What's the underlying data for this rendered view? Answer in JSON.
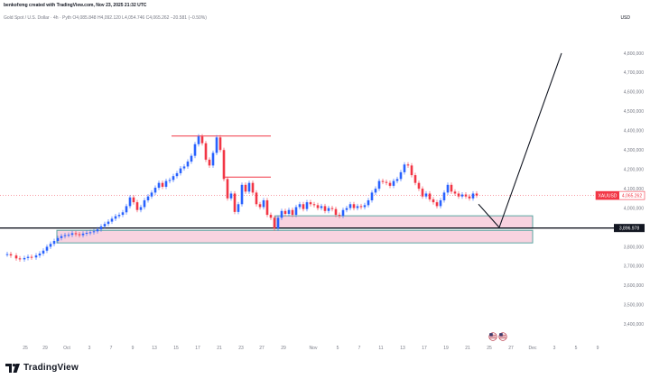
{
  "header": {
    "title": "benkofxmg created with TradingView.com, Nov 23, 2025 21:32 UTC",
    "ohlc": "Gold Spot / U.S. Dollar · 4h · Pyth  O4,085.848  H4,092.120  L4,054.746  C4,065.262  −20.581 (−0.50%)"
  },
  "currency": "USD",
  "price_tag": {
    "symbol": "XAUUSD",
    "value": "4,065.262",
    "color": "#f23645"
  },
  "level_tag": {
    "value": "3,896.978",
    "color": "#131722"
  },
  "chart_data": {
    "type": "candlestick",
    "instrument": "XAUUSD",
    "timeframe": "4h",
    "y_ticks": [
      "4,800,000",
      "4,700,000",
      "4,600,000",
      "4,500,000",
      "4,400,000",
      "4,300,000",
      "4,200,000",
      "4,100,000",
      "4,000,000",
      "3,800,000",
      "3,700,000",
      "3,600,000",
      "3,500,000",
      "3,400,000"
    ],
    "y_tick_values": [
      4800,
      4700,
      4600,
      4500,
      4400,
      4300,
      4200,
      4100,
      4000,
      3800,
      3700,
      3600,
      3500,
      3400
    ],
    "ylim": [
      3350,
      4935
    ],
    "x_ticks": [
      "25",
      "29",
      "Oct",
      "3",
      "7",
      "9",
      "13",
      "15",
      "17",
      "21",
      "23",
      "27",
      "29",
      "Nov",
      "5",
      "7",
      "11",
      "13",
      "17",
      "19",
      "21",
      "25",
      "27",
      "Dec",
      "3",
      "5",
      "9"
    ],
    "xlim": [
      0,
      720
    ],
    "close_path": [
      [
        3,
        3760
      ],
      [
        8,
        3762
      ],
      [
        12,
        3755
      ],
      [
        18,
        3740
      ],
      [
        22,
        3735
      ],
      [
        27,
        3742
      ],
      [
        31,
        3748
      ],
      [
        35,
        3745
      ],
      [
        40,
        3755
      ],
      [
        44,
        3765
      ],
      [
        48,
        3780
      ],
      [
        52,
        3800
      ],
      [
        56,
        3815
      ],
      [
        60,
        3830
      ],
      [
        64,
        3845
      ],
      [
        68,
        3855
      ],
      [
        72,
        3860
      ],
      [
        76,
        3862
      ],
      [
        80,
        3870
      ],
      [
        84,
        3865
      ],
      [
        88,
        3860
      ],
      [
        92,
        3868
      ],
      [
        96,
        3872
      ],
      [
        100,
        3875
      ],
      [
        104,
        3880
      ],
      [
        108,
        3890
      ],
      [
        112,
        3905
      ],
      [
        116,
        3918
      ],
      [
        120,
        3930
      ],
      [
        124,
        3945
      ],
      [
        128,
        3958
      ],
      [
        132,
        3965
      ],
      [
        136,
        3978
      ],
      [
        140,
        4010
      ],
      [
        144,
        4055
      ],
      [
        148,
        4030
      ],
      [
        152,
        3990
      ],
      [
        156,
        4005
      ],
      [
        160,
        4040
      ],
      [
        164,
        4060
      ],
      [
        168,
        4080
      ],
      [
        172,
        4105
      ],
      [
        176,
        4130
      ],
      [
        180,
        4110
      ],
      [
        184,
        4140
      ],
      [
        188,
        4145
      ],
      [
        192,
        4165
      ],
      [
        196,
        4180
      ],
      [
        200,
        4205
      ],
      [
        204,
        4215
      ],
      [
        208,
        4240
      ],
      [
        212,
        4270
      ],
      [
        216,
        4330
      ],
      [
        220,
        4370
      ],
      [
        224,
        4335
      ],
      [
        228,
        4250
      ],
      [
        232,
        4220
      ],
      [
        236,
        4285
      ],
      [
        240,
        4365
      ],
      [
        244,
        4300
      ],
      [
        248,
        4150
      ],
      [
        252,
        4050
      ],
      [
        256,
        4075
      ],
      [
        260,
        3980
      ],
      [
        264,
        4020
      ],
      [
        268,
        4120
      ],
      [
        272,
        4085
      ],
      [
        276,
        4130
      ],
      [
        280,
        4080
      ],
      [
        284,
        4020
      ],
      [
        288,
        4005
      ],
      [
        292,
        4040
      ],
      [
        296,
        3965
      ],
      [
        300,
        3950
      ],
      [
        304,
        3895
      ],
      [
        308,
        3950
      ],
      [
        312,
        3985
      ],
      [
        316,
        3970
      ],
      [
        320,
        3990
      ],
      [
        324,
        3965
      ],
      [
        328,
        4005
      ],
      [
        332,
        4020
      ],
      [
        336,
        3995
      ],
      [
        340,
        4030
      ],
      [
        344,
        4020
      ],
      [
        348,
        4015
      ],
      [
        352,
        4000
      ],
      [
        356,
        4010
      ],
      [
        360,
        3985
      ],
      [
        364,
        4000
      ],
      [
        368,
        3995
      ],
      [
        372,
        3965
      ],
      [
        376,
        3960
      ],
      [
        380,
        3990
      ],
      [
        384,
        4000
      ],
      [
        388,
        4020
      ],
      [
        392,
        4000
      ],
      [
        396,
        4010
      ],
      [
        400,
        4005
      ],
      [
        404,
        4015
      ],
      [
        408,
        4040
      ],
      [
        412,
        4080
      ],
      [
        416,
        4100
      ],
      [
        420,
        4140
      ],
      [
        424,
        4135
      ],
      [
        428,
        4130
      ],
      [
        432,
        4115
      ],
      [
        436,
        4140
      ],
      [
        440,
        4150
      ],
      [
        444,
        4185
      ],
      [
        448,
        4225
      ],
      [
        452,
        4220
      ],
      [
        456,
        4170
      ],
      [
        460,
        4130
      ],
      [
        464,
        4100
      ],
      [
        468,
        4060
      ],
      [
        472,
        4075
      ],
      [
        476,
        4045
      ],
      [
        480,
        4030
      ],
      [
        484,
        4010
      ],
      [
        488,
        4040
      ],
      [
        492,
        4080
      ],
      [
        496,
        4120
      ],
      [
        500,
        4085
      ],
      [
        504,
        4075
      ],
      [
        508,
        4060
      ],
      [
        512,
        4070
      ],
      [
        516,
        4060
      ],
      [
        520,
        4050
      ],
      [
        524,
        4075
      ],
      [
        528,
        4065
      ]
    ],
    "zones": [
      {
        "name": "upper-zone",
        "y_top": 3960,
        "y_bottom": 3895,
        "x_start": 305,
        "x_end": 590
      },
      {
        "name": "lower-zone",
        "y_top": 3885,
        "y_bottom": 3820,
        "x_start": 63,
        "x_end": 590
      }
    ],
    "levels": [
      {
        "name": "support-line",
        "y": 3896.978,
        "x_start": 0,
        "x_end": 680,
        "color": "#131722"
      },
      {
        "name": "resistance-high",
        "y": 4372,
        "x_start": 190,
        "x_end": 300,
        "color": "#f23645"
      },
      {
        "name": "resistance-mid",
        "y": 4160,
        "x_start": 248,
        "x_end": 300,
        "color": "#f23645"
      }
    ],
    "projection": [
      [
        530,
        4020
      ],
      [
        553,
        3900
      ],
      [
        622,
        4800
      ]
    ],
    "grid": false
  },
  "icons": {
    "flags": "us-flag-icon",
    "logo": "tradingview-logo-icon"
  },
  "footer": {
    "logo_text": "TradingView"
  }
}
